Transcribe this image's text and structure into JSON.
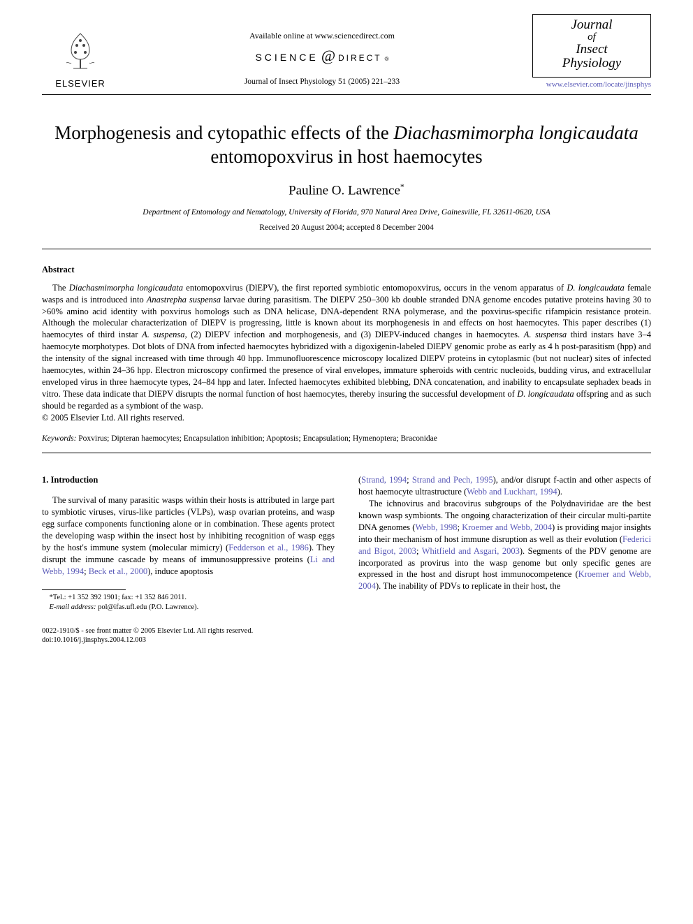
{
  "header": {
    "elsevier": "ELSEVIER",
    "available": "Available online at www.sciencedirect.com",
    "sd_science": "SCIENCE",
    "sd_direct": "DIRECT",
    "journal_ref": "Journal of Insect Physiology 51 (2005) 221–233",
    "journal_box": {
      "l1": "Journal",
      "l2": "of",
      "l3": "Insect",
      "l4": "Physiology"
    },
    "journal_url": "www.elsevier.com/locate/jinsphys"
  },
  "title": {
    "pre": "Morphogenesis and cytopathic effects of the ",
    "species": "Diachasmimorpha longicaudata",
    "post": " entomopoxvirus in host haemocytes"
  },
  "author": "Pauline O. Lawrence",
  "author_mark": "*",
  "affiliation": "Department of Entomology and Nematology, University of Florida, 970 Natural Area Drive, Gainesville, FL 32611-0620, USA",
  "dates": "Received 20 August 2004; accepted 8 December 2004",
  "abstract": {
    "heading": "Abstract",
    "body_html": "The <span class=\"italic\">Diachasmimorpha longicaudata</span> entomopoxvirus (DlEPV), the first reported symbiotic entomopoxvirus, occurs in the venom apparatus of <span class=\"italic\">D. longicaudata</span> female wasps and is introduced into <span class=\"italic\">Anastrepha suspensa</span> larvae during parasitism. The DlEPV 250–300 kb double stranded DNA genome encodes putative proteins having 30 to >60% amino acid identity with poxvirus homologs such as DNA helicase, DNA-dependent RNA polymerase, and the poxvirus-specific rifampicin resistance protein. Although the molecular characterization of DlEPV is progressing, little is known about its morphogenesis in and effects on host haemocytes. This paper describes (1) haemocytes of third instar <span class=\"italic\">A. suspensa</span>, (2) DlEPV infection and morphogenesis, and (3) DlEPV-induced changes in haemocytes. <span class=\"italic\">A. suspensa</span> third instars have 3–4 haemocyte morphotypes. Dot blots of DNA from infected haemocytes hybridized with a digoxigenin-labeled DlEPV genomic probe as early as 4 h post-parasitism (hpp) and the intensity of the signal increased with time through 40 hpp. Immunofluorescence microscopy localized DlEPV proteins in cytoplasmic (but not nuclear) sites of infected haemocytes, within 24–36 hpp. Electron microscopy confirmed the presence of viral envelopes, immature spheroids with centric nucleoids, budding virus, and extracellular enveloped virus in three haemocyte types, 24–84 hpp and later. Infected haemocytes exhibited blebbing, DNA concatenation, and inability to encapsulate sephadex beads in vitro. These data indicate that DlEPV disrupts the normal function of host haemocytes, thereby insuring the successful development of <span class=\"italic\">D. longicaudata</span> offspring and as such should be regarded as a symbiont of the wasp.",
    "copyright": "© 2005 Elsevier Ltd. All rights reserved."
  },
  "keywords": {
    "label": "Keywords:",
    "list": " Poxvirus; Dipteran haemocytes; Encapsulation inhibition; Apoptosis; Encapsulation; Hymenoptera; Braconidae"
  },
  "body": {
    "intro_heading": "1. Introduction",
    "col1_p1_html": "The survival of many parasitic wasps within their hosts is attributed in large part to symbiotic viruses, virus-like particles (VLPs), wasp ovarian proteins, and wasp egg surface components functioning alone or in combination. These agents protect the developing wasp within the insect host by inhibiting recognition of wasp eggs by the host's immune system (molecular mimicry) (<span class=\"cite\">Fedderson et al., 1986</span>). They disrupt the immune cascade by means of immunosuppressive proteins (<span class=\"cite\">Li and Webb, 1994</span>; <span class=\"cite\">Beck et al., 2000</span>), induce apoptosis",
    "col2_p1_html": "(<span class=\"cite\">Strand, 1994</span>; <span class=\"cite\">Strand and Pech, 1995</span>), and/or disrupt f-actin and other aspects of host haemocyte ultrastructure (<span class=\"cite\">Webb and Luckhart, 1994</span>).",
    "col2_p2_html": "The ichnovirus and bracovirus subgroups of the Polydnaviridae are the best known wasp symbionts. The ongoing characterization of their circular multi-partite DNA genomes (<span class=\"cite\">Webb, 1998</span>; <span class=\"cite\">Kroemer and Webb, 2004</span>) is providing major insights into their mechanism of host immune disruption as well as their evolution (<span class=\"cite\">Federici and Bigot, 2003</span>; <span class=\"cite\">Whitfield and Asgari, 2003</span>). Segments of the PDV genome are incorporated as provirus into the wasp genome but only specific genes are expressed in the host and disrupt host immunocompetence (<span class=\"cite\">Kroemer and Webb, 2004</span>). The inability of PDVs to replicate in their host, the"
  },
  "footnote": {
    "tel": "*Tel.: +1 352 392 1901; fax: +1 352 846 2011.",
    "email_label": "E-mail address:",
    "email": " pol@ifas.ufl.edu (P.O. Lawrence)."
  },
  "bottom": {
    "line1": "0022-1910/$ - see front matter © 2005 Elsevier Ltd. All rights reserved.",
    "line2": "doi:10.1016/j.jinsphys.2004.12.003"
  },
  "colors": {
    "link": "#5a5ab8",
    "text": "#000000",
    "bg": "#ffffff"
  }
}
